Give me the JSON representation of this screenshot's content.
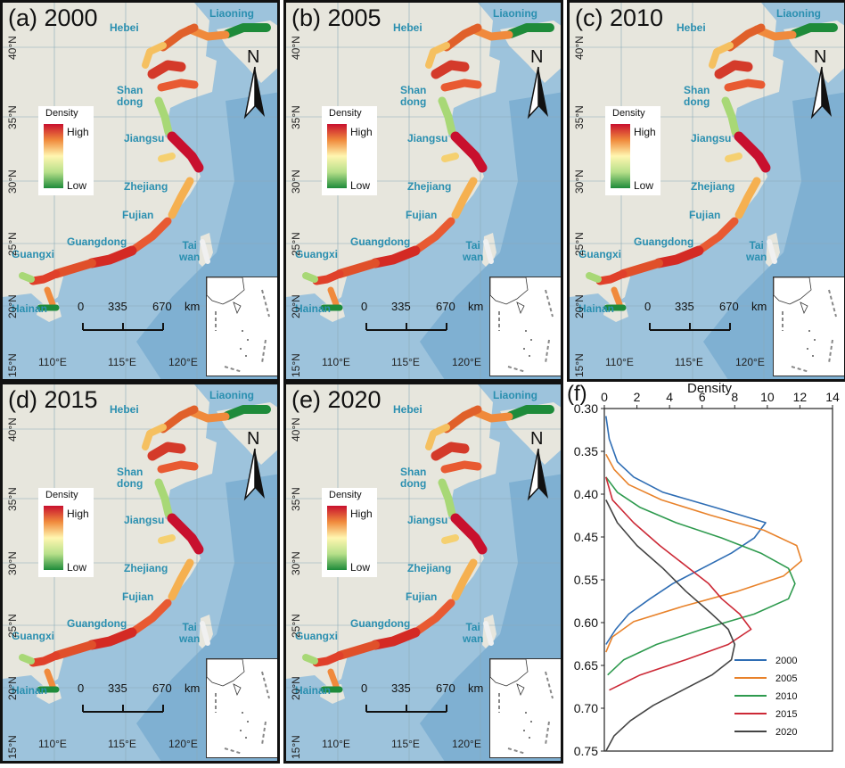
{
  "panels": [
    {
      "title": "(a) 2000",
      "year": "2000"
    },
    {
      "title": "(b) 2005",
      "year": "2005"
    },
    {
      "title": "(c) 2010",
      "year": "2010"
    },
    {
      "title": "(d) 2015",
      "year": "2015"
    },
    {
      "title": "(e) 2020",
      "year": "2020"
    }
  ],
  "map_labels": {
    "liaoning": "Liaoning",
    "hebei": "Hebei",
    "shandong_1": "Shan",
    "shandong_2": "dong",
    "jiangsu": "Jiangsu",
    "zhejiang": "Zhejiang",
    "fujian": "Fujian",
    "guangdong": "Guangdong",
    "guangxi": "Guangxi",
    "taiwan_1": "Tai",
    "taiwan_2": "wan",
    "hainan": "Hainan"
  },
  "lat_ticks": [
    "40°N",
    "35°N",
    "30°N",
    "25°N",
    "20°N",
    "15°N"
  ],
  "lon_ticks": [
    "110°E",
    "115°E",
    "120°E"
  ],
  "legend": {
    "title": "Density",
    "high": "High",
    "low": "Low"
  },
  "north_label": "N",
  "scale_bar": {
    "t0": "0",
    "t1": "335",
    "t2": "670",
    "unit": "km"
  },
  "colors": {
    "high": "#c8102e",
    "mid": "#fff6b0",
    "low": "#1e8b3a",
    "sea": "#9dc3dc",
    "land": "#e8e8e0"
  },
  "chart_data": {
    "type": "line",
    "panel_label": "(f)",
    "xlabel": "Density",
    "x_ticks": [
      "0",
      "2",
      "4",
      "6",
      "8",
      "10",
      "12",
      "14"
    ],
    "y_ticks": [
      "0.30",
      "0.35",
      "0.40",
      "0.45",
      "0.55",
      "0.60",
      "0.65",
      "0.70",
      "0.75"
    ],
    "xlim": [
      0,
      14
    ],
    "ylim": [
      0.3,
      0.75
    ],
    "y_inverted": true,
    "x_axis_position": "top",
    "legend_position": "bottom-right",
    "series": [
      {
        "name": "2000",
        "color": "#2e6db4",
        "y": [
          0.31,
          0.34,
          0.37,
          0.39,
          0.41,
          0.43,
          0.45,
          0.47,
          0.49,
          0.51,
          0.53,
          0.55,
          0.57,
          0.59,
          0.61
        ],
        "x": [
          0.1,
          0.3,
          0.8,
          1.8,
          3.6,
          6.8,
          9.9,
          9.2,
          7.8,
          6.0,
          4.2,
          2.8,
          1.5,
          0.7,
          0.1
        ]
      },
      {
        "name": "2005",
        "color": "#e8822a",
        "y": [
          0.36,
          0.38,
          0.4,
          0.42,
          0.44,
          0.46,
          0.48,
          0.5,
          0.52,
          0.54,
          0.56,
          0.58,
          0.6,
          0.62
        ],
        "x": [
          0.1,
          0.6,
          1.5,
          3.5,
          6.5,
          9.8,
          11.8,
          12.1,
          11.0,
          8.2,
          4.8,
          1.8,
          0.5,
          0.1
        ]
      },
      {
        "name": "2010",
        "color": "#2e9a4e",
        "y": [
          0.39,
          0.41,
          0.43,
          0.45,
          0.47,
          0.49,
          0.51,
          0.53,
          0.55,
          0.57,
          0.59,
          0.61,
          0.63,
          0.65
        ],
        "x": [
          0.1,
          0.8,
          2.2,
          4.4,
          7.2,
          9.6,
          11.3,
          11.7,
          11.3,
          9.2,
          6.0,
          3.2,
          1.2,
          0.2
        ]
      },
      {
        "name": "2015",
        "color": "#cc2936",
        "y": [
          0.39,
          0.42,
          0.45,
          0.48,
          0.51,
          0.53,
          0.55,
          0.57,
          0.59,
          0.61,
          0.63,
          0.65,
          0.67
        ],
        "x": [
          0.1,
          0.5,
          1.8,
          3.4,
          5.2,
          6.4,
          7.2,
          8.3,
          9.0,
          7.6,
          5.0,
          2.2,
          0.3
        ]
      },
      {
        "name": "2020",
        "color": "#444444",
        "y": [
          0.42,
          0.45,
          0.48,
          0.51,
          0.54,
          0.57,
          0.59,
          0.61,
          0.63,
          0.65,
          0.67,
          0.69,
          0.71,
          0.73,
          0.75
        ],
        "x": [
          0.1,
          0.8,
          2.0,
          3.6,
          5.0,
          6.6,
          7.6,
          8.0,
          7.8,
          6.6,
          4.8,
          3.0,
          1.6,
          0.6,
          0.1
        ]
      }
    ]
  }
}
